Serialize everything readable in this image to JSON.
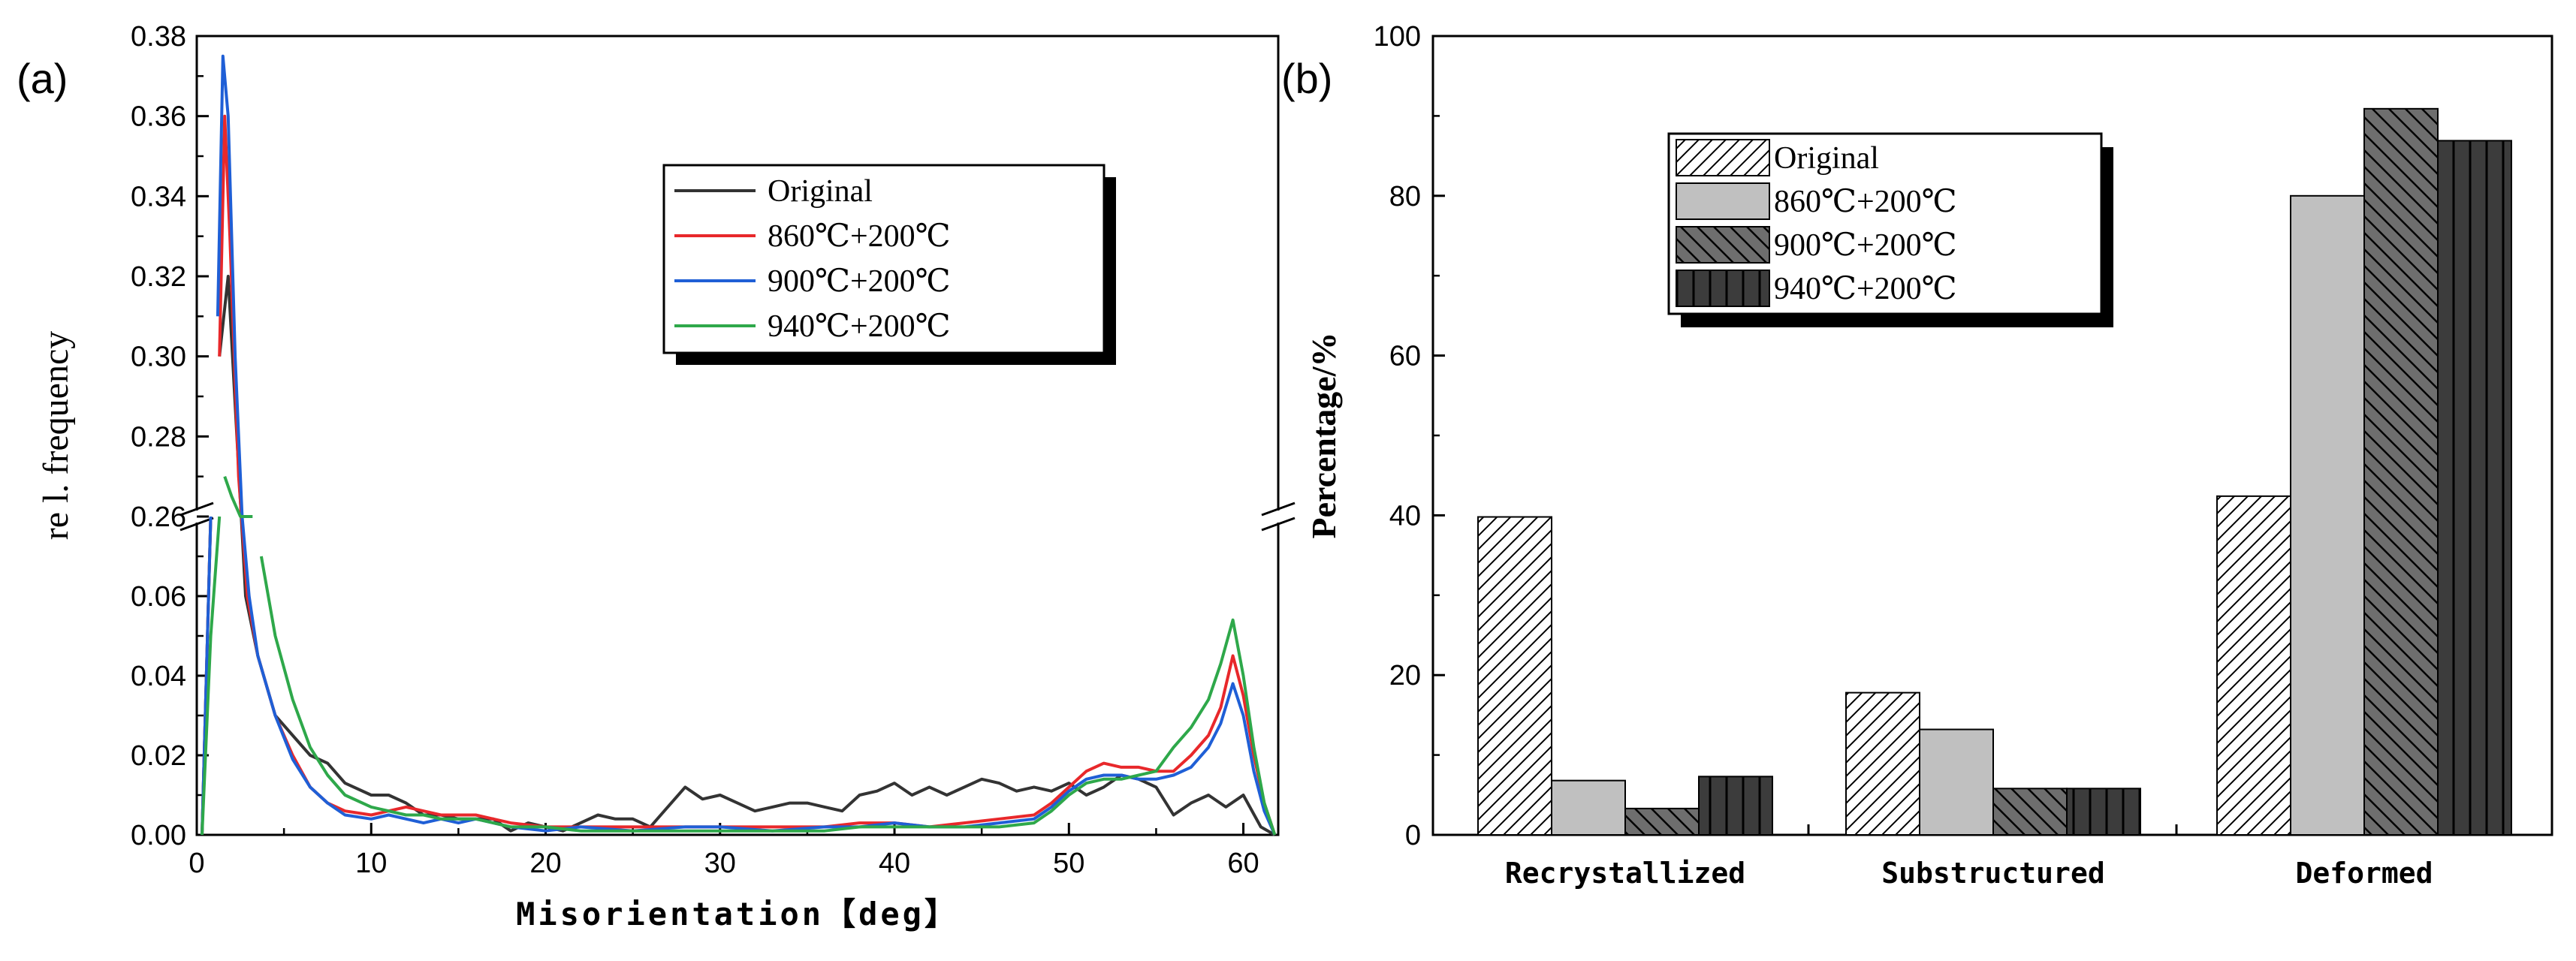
{
  "colors": {
    "original": "#333333",
    "c860": "#e8282b",
    "c900": "#1f5fd6",
    "c940": "#2ea84a",
    "bar_light": "#c0c0c0",
    "bar_mid": "#6e6e6e",
    "bar_dark": "#3c3c3c",
    "axis": "#000000"
  },
  "chart_data": [
    {
      "type": "line",
      "panel_label": "(a)",
      "xlabel": "Misorientation【deg】",
      "ylabel": "re l. frequency",
      "xlim": [
        0,
        62
      ],
      "ylim_lower": [
        0,
        0.08
      ],
      "ylim_upper": [
        0.26,
        0.38
      ],
      "x_ticks": [
        "0",
        "10",
        "20",
        "30",
        "40",
        "50",
        "60"
      ],
      "y_ticks_lower": [
        "0.00",
        "0.02",
        "0.04",
        "0.06"
      ],
      "y_ticks_upper": [
        "0.26",
        "0.28",
        "0.30",
        "0.32",
        "0.34",
        "0.36",
        "0.38"
      ],
      "legend": [
        "Original",
        "860℃+200℃",
        "900℃+200℃",
        "940℃+200℃"
      ],
      "series": [
        {
          "name": "Original",
          "color_key": "original",
          "points": [
            [
              0.3,
              0.0
            ],
            [
              0.8,
              0.12
            ],
            [
              1.3,
              0.3
            ],
            [
              1.8,
              0.32
            ],
            [
              2.3,
              0.28
            ],
            [
              2.8,
              0.06
            ],
            [
              3.5,
              0.045
            ],
            [
              4.5,
              0.03
            ],
            [
              5.5,
              0.025
            ],
            [
              6.5,
              0.02
            ],
            [
              7.5,
              0.018
            ],
            [
              8.5,
              0.013
            ],
            [
              10,
              0.01
            ],
            [
              11,
              0.01
            ],
            [
              12,
              0.008
            ],
            [
              13,
              0.005
            ],
            [
              14,
              0.005
            ],
            [
              15,
              0.004
            ],
            [
              16,
              0.004
            ],
            [
              17,
              0.004
            ],
            [
              18,
              0.001
            ],
            [
              19,
              0.003
            ],
            [
              20,
              0.002
            ],
            [
              21,
              0.001
            ],
            [
              22,
              0.003
            ],
            [
              23,
              0.005
            ],
            [
              24,
              0.004
            ],
            [
              25,
              0.004
            ],
            [
              26,
              0.002
            ],
            [
              27,
              0.007
            ],
            [
              28,
              0.012
            ],
            [
              29,
              0.009
            ],
            [
              30,
              0.01
            ],
            [
              31,
              0.008
            ],
            [
              32,
              0.006
            ],
            [
              33,
              0.007
            ],
            [
              34,
              0.008
            ],
            [
              35,
              0.008
            ],
            [
              36,
              0.007
            ],
            [
              37,
              0.006
            ],
            [
              38,
              0.01
            ],
            [
              39,
              0.011
            ],
            [
              40,
              0.013
            ],
            [
              41,
              0.01
            ],
            [
              42,
              0.012
            ],
            [
              43,
              0.01
            ],
            [
              44,
              0.012
            ],
            [
              45,
              0.014
            ],
            [
              46,
              0.013
            ],
            [
              47,
              0.011
            ],
            [
              48,
              0.012
            ],
            [
              49,
              0.011
            ],
            [
              50,
              0.013
            ],
            [
              51,
              0.01
            ],
            [
              52,
              0.012
            ],
            [
              53,
              0.015
            ],
            [
              54,
              0.014
            ],
            [
              55,
              0.012
            ],
            [
              56,
              0.005
            ],
            [
              57,
              0.008
            ],
            [
              58,
              0.01
            ],
            [
              59,
              0.007
            ],
            [
              60,
              0.01
            ],
            [
              61,
              0.002
            ],
            [
              61.8,
              0.0
            ]
          ]
        },
        {
          "name": "860℃+200℃",
          "color_key": "c860",
          "points": [
            [
              0.3,
              0.0
            ],
            [
              0.8,
              0.1
            ],
            [
              1.3,
              0.3
            ],
            [
              1.6,
              0.36
            ],
            [
              1.9,
              0.33
            ],
            [
              2.4,
              0.27
            ],
            [
              2.9,
              0.06
            ],
            [
              3.5,
              0.045
            ],
            [
              4.5,
              0.03
            ],
            [
              5.5,
              0.02
            ],
            [
              6.5,
              0.012
            ],
            [
              7.5,
              0.008
            ],
            [
              8.5,
              0.006
            ],
            [
              10,
              0.005
            ],
            [
              11,
              0.006
            ],
            [
              12,
              0.007
            ],
            [
              13,
              0.006
            ],
            [
              14,
              0.005
            ],
            [
              15,
              0.005
            ],
            [
              16,
              0.005
            ],
            [
              17,
              0.004
            ],
            [
              18,
              0.003
            ],
            [
              20,
              0.002
            ],
            [
              22,
              0.002
            ],
            [
              25,
              0.002
            ],
            [
              28,
              0.002
            ],
            [
              30,
              0.002
            ],
            [
              33,
              0.002
            ],
            [
              36,
              0.002
            ],
            [
              38,
              0.003
            ],
            [
              40,
              0.003
            ],
            [
              42,
              0.002
            ],
            [
              44,
              0.003
            ],
            [
              46,
              0.004
            ],
            [
              48,
              0.005
            ],
            [
              49,
              0.008
            ],
            [
              50,
              0.012
            ],
            [
              51,
              0.016
            ],
            [
              52,
              0.018
            ],
            [
              53,
              0.017
            ],
            [
              54,
              0.017
            ],
            [
              55,
              0.016
            ],
            [
              56,
              0.016
            ],
            [
              57,
              0.02
            ],
            [
              58,
              0.025
            ],
            [
              58.7,
              0.032
            ],
            [
              59.4,
              0.045
            ],
            [
              60,
              0.035
            ],
            [
              60.6,
              0.02
            ],
            [
              61.2,
              0.008
            ],
            [
              61.8,
              0.0
            ]
          ]
        },
        {
          "name": "900℃+200℃",
          "color_key": "c900",
          "points": [
            [
              0.3,
              0.0
            ],
            [
              0.8,
              0.09
            ],
            [
              1.2,
              0.31
            ],
            [
              1.5,
              0.375
            ],
            [
              1.8,
              0.36
            ],
            [
              2.2,
              0.3
            ],
            [
              2.6,
              0.26
            ],
            [
              3.0,
              0.06
            ],
            [
              3.5,
              0.045
            ],
            [
              4.5,
              0.03
            ],
            [
              5.5,
              0.019
            ],
            [
              6.5,
              0.012
            ],
            [
              7.5,
              0.008
            ],
            [
              8.5,
              0.005
            ],
            [
              10,
              0.004
            ],
            [
              11,
              0.005
            ],
            [
              12,
              0.004
            ],
            [
              13,
              0.003
            ],
            [
              14,
              0.004
            ],
            [
              15,
              0.003
            ],
            [
              16,
              0.004
            ],
            [
              17,
              0.003
            ],
            [
              18,
              0.002
            ],
            [
              20,
              0.001
            ],
            [
              22,
              0.002
            ],
            [
              25,
              0.001
            ],
            [
              28,
              0.002
            ],
            [
              30,
              0.002
            ],
            [
              33,
              0.001
            ],
            [
              36,
              0.002
            ],
            [
              38,
              0.002
            ],
            [
              40,
              0.003
            ],
            [
              42,
              0.002
            ],
            [
              44,
              0.002
            ],
            [
              46,
              0.003
            ],
            [
              48,
              0.004
            ],
            [
              49,
              0.007
            ],
            [
              50,
              0.011
            ],
            [
              51,
              0.014
            ],
            [
              52,
              0.015
            ],
            [
              53,
              0.015
            ],
            [
              54,
              0.014
            ],
            [
              55,
              0.014
            ],
            [
              56,
              0.015
            ],
            [
              57,
              0.017
            ],
            [
              58,
              0.022
            ],
            [
              58.7,
              0.028
            ],
            [
              59.4,
              0.038
            ],
            [
              60,
              0.03
            ],
            [
              60.6,
              0.016
            ],
            [
              61.2,
              0.006
            ],
            [
              61.8,
              0.0
            ]
          ]
        },
        {
          "name": "940℃+200℃",
          "color_key": "c940",
          "points": [
            [
              0.3,
              0.0
            ],
            [
              0.8,
              0.05
            ],
            [
              1.3,
              0.255
            ],
            [
              1.6,
              0.27
            ],
            [
              2.0,
              0.265
            ],
            [
              2.5,
              0.26
            ],
            [
              3.2,
              0.083
            ],
            [
              3.7,
              0.07
            ],
            [
              4.5,
              0.05
            ],
            [
              5.5,
              0.034
            ],
            [
              6.5,
              0.022
            ],
            [
              7.5,
              0.015
            ],
            [
              8.5,
              0.01
            ],
            [
              10,
              0.007
            ],
            [
              11,
              0.006
            ],
            [
              12,
              0.005
            ],
            [
              13,
              0.005
            ],
            [
              14,
              0.004
            ],
            [
              15,
              0.004
            ],
            [
              16,
              0.004
            ],
            [
              17,
              0.003
            ],
            [
              18,
              0.002
            ],
            [
              20,
              0.002
            ],
            [
              22,
              0.001
            ],
            [
              25,
              0.001
            ],
            [
              28,
              0.001
            ],
            [
              30,
              0.001
            ],
            [
              33,
              0.001
            ],
            [
              36,
              0.001
            ],
            [
              38,
              0.002
            ],
            [
              40,
              0.002
            ],
            [
              42,
              0.002
            ],
            [
              44,
              0.002
            ],
            [
              46,
              0.002
            ],
            [
              48,
              0.003
            ],
            [
              49,
              0.006
            ],
            [
              50,
              0.01
            ],
            [
              51,
              0.013
            ],
            [
              52,
              0.014
            ],
            [
              53,
              0.014
            ],
            [
              54,
              0.015
            ],
            [
              55,
              0.016
            ],
            [
              56,
              0.022
            ],
            [
              57,
              0.027
            ],
            [
              58,
              0.034
            ],
            [
              58.7,
              0.043
            ],
            [
              59.4,
              0.054
            ],
            [
              60,
              0.04
            ],
            [
              60.6,
              0.022
            ],
            [
              61.2,
              0.008
            ],
            [
              61.8,
              0.0
            ]
          ]
        }
      ]
    },
    {
      "type": "bar",
      "panel_label": "(b)",
      "xlabel": "",
      "ylabel": "Percentage/%",
      "ylim": [
        0,
        100
      ],
      "y_ticks": [
        "0",
        "20",
        "40",
        "60",
        "80",
        "100"
      ],
      "categories": [
        "Recrystallized",
        "Substructured",
        "Deformed"
      ],
      "legend": [
        "Original",
        "860℃+200℃",
        "900℃+200℃",
        "940℃+200℃"
      ],
      "series": [
        {
          "name": "Original",
          "pattern": "diagonal-light",
          "values": [
            39.8,
            17.8,
            42.4
          ]
        },
        {
          "name": "860℃+200℃",
          "pattern": "solid-light",
          "values": [
            6.8,
            13.2,
            80.0
          ]
        },
        {
          "name": "900℃+200℃",
          "pattern": "diagonal-dark",
          "values": [
            3.3,
            5.8,
            90.9
          ]
        },
        {
          "name": "940℃+200℃",
          "pattern": "vertical-dark",
          "values": [
            7.3,
            5.8,
            86.9
          ]
        }
      ]
    }
  ]
}
